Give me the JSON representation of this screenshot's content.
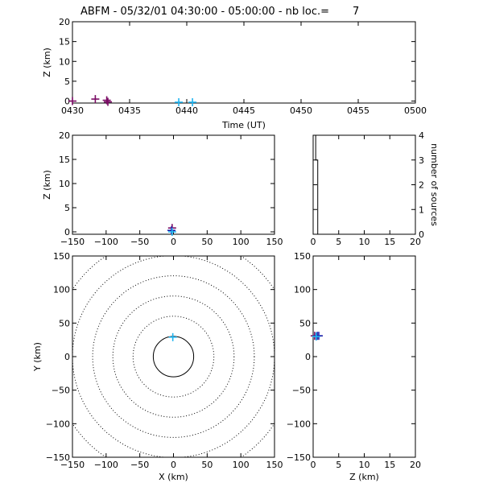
{
  "title": "ABFM - 05/32/01 04:30:00 - 05:00:00 - nb loc.=       7",
  "colors": {
    "purple": "#7a0a64",
    "blue": "#1e1ea8",
    "cyan": "#1fb4f0",
    "axis": "#000000"
  },
  "chart_data": [
    {
      "id": "time-height",
      "type": "scatter",
      "xlabel": "Time (UT)",
      "ylabel": "Z (km)",
      "xlim": [
        0,
        30
      ],
      "ylim": [
        -0.5,
        20
      ],
      "xticks": [
        0,
        5,
        10,
        15,
        20,
        25,
        30
      ],
      "xtick_labels": [
        "0430",
        "0435",
        "0440",
        "0445",
        "0450",
        "0455",
        "0500"
      ],
      "yticks": [
        0,
        5,
        10,
        15,
        20
      ],
      "ytick_labels": [
        "0",
        "5",
        "10",
        "15",
        "20"
      ],
      "points": [
        {
          "x": 0.0,
          "y": 0.0,
          "color": "purple"
        },
        {
          "x": 2.0,
          "y": 0.5,
          "color": "purple"
        },
        {
          "x": 3.0,
          "y": 0.2,
          "color": "purple"
        },
        {
          "x": 3.1,
          "y": -0.2,
          "color": "purple"
        },
        {
          "x": 9.3,
          "y": -0.3,
          "color": "cyan"
        },
        {
          "x": 10.5,
          "y": -0.3,
          "color": "cyan"
        }
      ]
    },
    {
      "id": "xz",
      "type": "scatter",
      "xlabel": "",
      "ylabel": "Z (km)",
      "xlim": [
        -150,
        150
      ],
      "ylim": [
        -0.5,
        20
      ],
      "xticks": [
        -150,
        -100,
        -50,
        0,
        50,
        100,
        150
      ],
      "xtick_labels": [
        "−150",
        "−100",
        "−50",
        "0",
        "50",
        "100",
        "150"
      ],
      "yticks": [
        0,
        5,
        10,
        15,
        20
      ],
      "ytick_labels": [
        "0",
        "5",
        "10",
        "15",
        "20"
      ],
      "points": [
        {
          "x": -2,
          "y": 0.8,
          "color": "purple"
        },
        {
          "x": -3,
          "y": 0.3,
          "color": "blue"
        },
        {
          "x": -2,
          "y": 0.0,
          "color": "cyan"
        }
      ]
    },
    {
      "id": "histogram",
      "type": "line",
      "xlabel": "",
      "ylabel": "number of sources",
      "xlim": [
        0,
        20
      ],
      "ylim": [
        0,
        4
      ],
      "xticks": [
        0,
        5,
        10,
        15,
        20
      ],
      "xtick_labels": [
        "0",
        "5",
        "10",
        "15",
        "20"
      ],
      "yticks": [
        0,
        1,
        2,
        3,
        4
      ],
      "ytick_labels": [
        "0",
        "1",
        "2",
        "3",
        "4"
      ],
      "x": [
        0,
        0.5,
        0.5,
        0.9,
        0.9,
        20
      ],
      "y": [
        4,
        4,
        3,
        3,
        0,
        0
      ]
    },
    {
      "id": "xy",
      "type": "scatter",
      "xlabel": "X (km)",
      "ylabel": "Y (km)",
      "xlim": [
        -150,
        150
      ],
      "ylim": [
        -150,
        150
      ],
      "xticks": [
        -150,
        -100,
        -50,
        0,
        50,
        100,
        150
      ],
      "xtick_labels": [
        "−150",
        "−100",
        "−50",
        "0",
        "50",
        "100",
        "150"
      ],
      "yticks": [
        -150,
        -100,
        -50,
        0,
        50,
        100,
        150
      ],
      "ytick_labels": [
        "−150",
        "−100",
        "−50",
        "0",
        "50",
        "100",
        "150"
      ],
      "range_rings_km": [
        30,
        60,
        90,
        120,
        150,
        180
      ],
      "points": [
        {
          "x": -1,
          "y": 29,
          "color": "cyan"
        }
      ]
    },
    {
      "id": "zy",
      "type": "scatter",
      "xlabel": "Z (km)",
      "ylabel": "",
      "xlim": [
        0,
        20
      ],
      "ylim": [
        -150,
        150
      ],
      "xticks": [
        0,
        5,
        10,
        15,
        20
      ],
      "xtick_labels": [
        "0",
        "5",
        "10",
        "15",
        "20"
      ],
      "yticks": [
        -150,
        -100,
        -50,
        0,
        50,
        100,
        150
      ],
      "ytick_labels": [
        "−150",
        "−100",
        "−50",
        "0",
        "50",
        "100",
        "150"
      ],
      "points": [
        {
          "x": 0.3,
          "y": 31,
          "color": "purple"
        },
        {
          "x": 0.8,
          "y": 31,
          "color": "blue"
        },
        {
          "x": 1.1,
          "y": 31,
          "color": "blue"
        },
        {
          "x": 0.6,
          "y": 30,
          "color": "cyan"
        }
      ]
    }
  ]
}
